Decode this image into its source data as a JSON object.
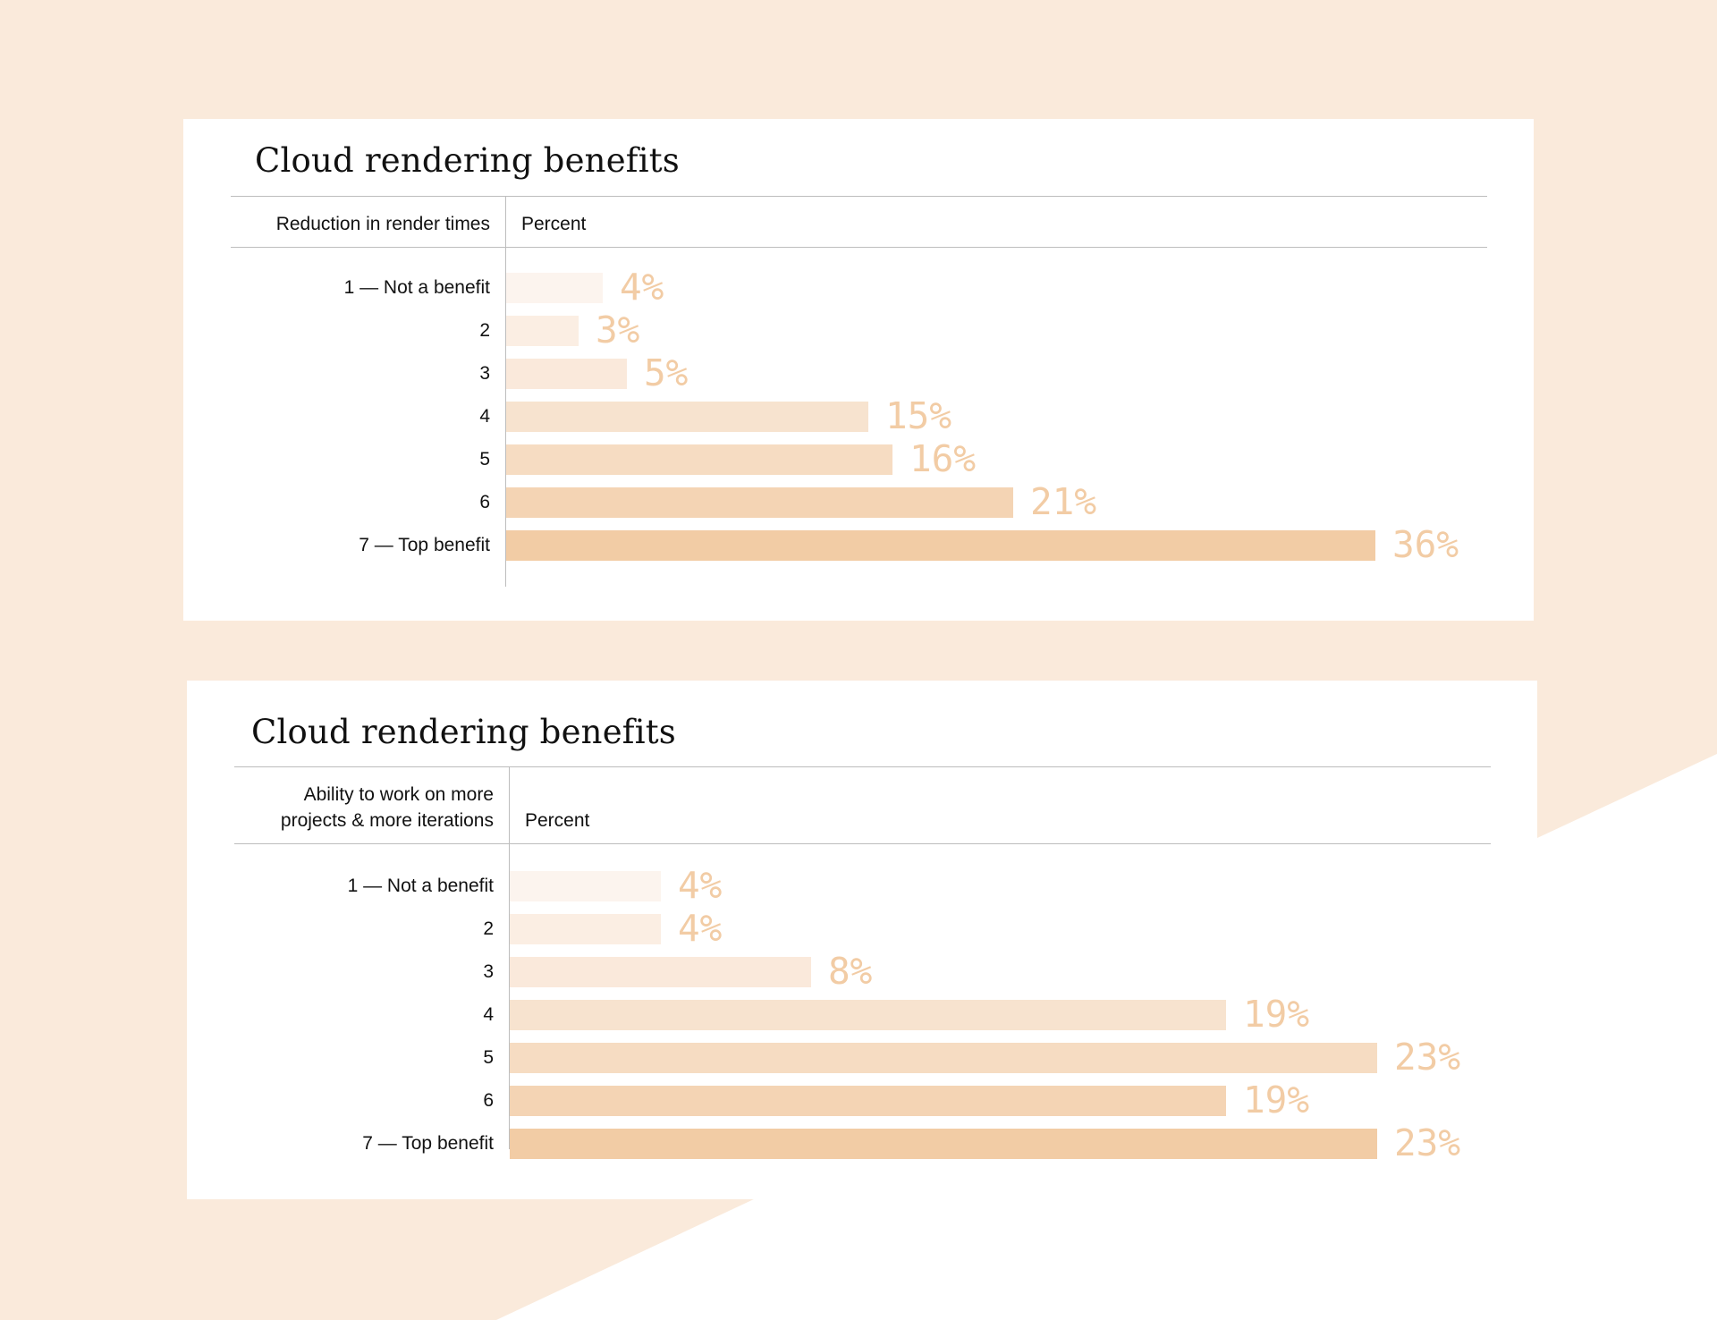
{
  "colors": {
    "background": "#faeadb",
    "card": "#ffffff",
    "value_label": "#f2cca5",
    "bar_shades": [
      "#fcf4ee",
      "#fbeee3",
      "#fae9db",
      "#f7e3cf",
      "#f6dcc2",
      "#f4d4b4",
      "#f2cca5"
    ]
  },
  "chart_data": [
    {
      "type": "bar",
      "orientation": "horizontal",
      "title": "Cloud rendering benefits",
      "category_header": "Reduction in render times",
      "value_header": "Percent",
      "categories": [
        "1 — Not a benefit",
        "2",
        "3",
        "4",
        "5",
        "6",
        "7 — Top benefit"
      ],
      "values": [
        4,
        3,
        5,
        15,
        16,
        21,
        36
      ],
      "value_labels": [
        "4%",
        "3%",
        "5%",
        "15%",
        "16%",
        "21%",
        "36%"
      ],
      "unit": "%",
      "xlim": [
        0,
        36
      ],
      "grid": false,
      "legend": "none"
    },
    {
      "type": "bar",
      "orientation": "horizontal",
      "title": "Cloud rendering benefits",
      "category_header": "Ability to work on more projects & more iterations",
      "value_header": "Percent",
      "categories": [
        "1 — Not a benefit",
        "2",
        "3",
        "4",
        "5",
        "6",
        "7 — Top benefit"
      ],
      "values": [
        4,
        4,
        8,
        19,
        23,
        19,
        23
      ],
      "value_labels": [
        "4%",
        "4%",
        "8%",
        "19%",
        "23%",
        "19%",
        "23%"
      ],
      "unit": "%",
      "xlim": [
        0,
        23
      ],
      "grid": false,
      "legend": "none"
    }
  ]
}
